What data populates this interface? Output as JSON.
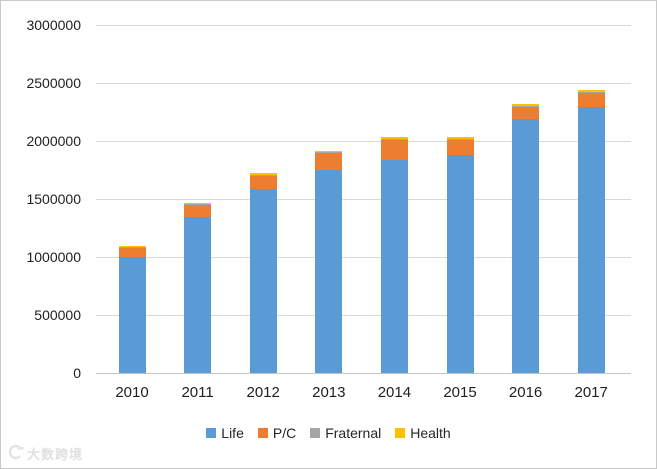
{
  "chart_data": {
    "type": "bar",
    "stacked": true,
    "title": "",
    "xlabel": "",
    "ylabel": "",
    "categories": [
      "2010",
      "2011",
      "2012",
      "2013",
      "2014",
      "2015",
      "2016",
      "2017"
    ],
    "series": [
      {
        "name": "Life",
        "color": "#5B9BD5",
        "values": [
          1000000,
          1345000,
          1590000,
          1750000,
          1840000,
          1880000,
          2190000,
          2295000
        ]
      },
      {
        "name": "P/C",
        "color": "#ED7D31",
        "values": [
          80000,
          105000,
          115000,
          150000,
          175000,
          135000,
          110000,
          125000
        ]
      },
      {
        "name": "Fraternal",
        "color": "#A5A5A5",
        "values": [
          5000,
          5000,
          5000,
          5000,
          5000,
          5000,
          5000,
          5000
        ]
      },
      {
        "name": "Health",
        "color": "#FFC000",
        "values": [
          12000,
          12000,
          12000,
          12000,
          12000,
          12000,
          12000,
          12000
        ]
      }
    ],
    "ylim": [
      0,
      3000000
    ],
    "ytick_interval": 500000,
    "ytick_labels": [
      "0",
      "500000",
      "1000000",
      "1500000",
      "2000000",
      "2500000",
      "3000000"
    ],
    "grid": "horizontal",
    "legend_position": "bottom"
  },
  "watermark": {
    "text": "大数跨境"
  },
  "colors": {
    "gridline": "#D9D9D9",
    "axis_line": "#C3C3C3",
    "text": "#1F1F1F",
    "border": "#C9C9C9",
    "background": "#FFFFFF"
  }
}
